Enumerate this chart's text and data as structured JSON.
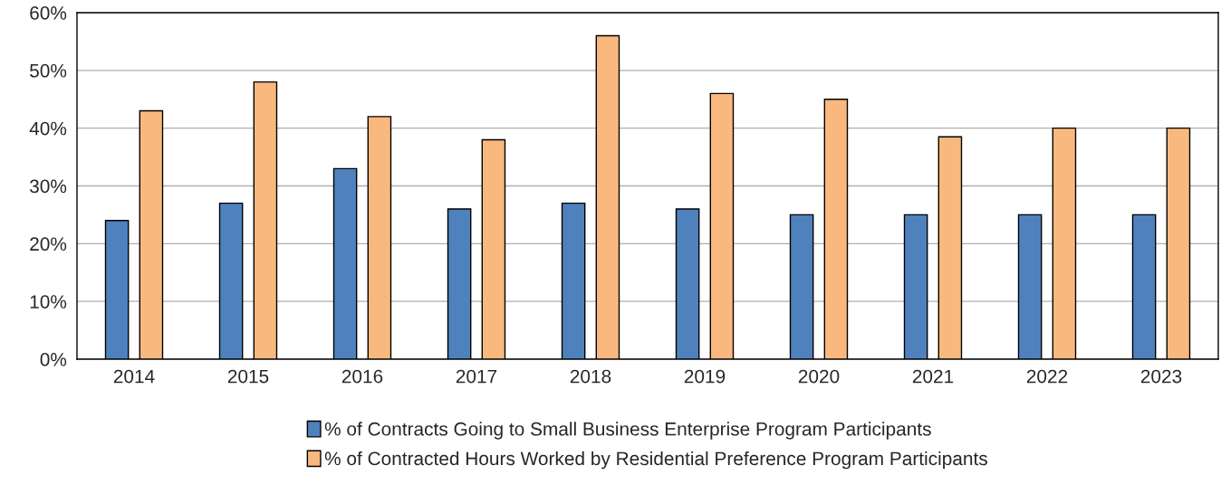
{
  "chart_data": {
    "type": "bar",
    "categories": [
      "2014",
      "2015",
      "2016",
      "2017",
      "2018",
      "2019",
      "2020",
      "2021",
      "2022",
      "2023"
    ],
    "series": [
      {
        "name": "% of Contracts Going to Small Business Enterprise Program Participants",
        "color": "#4f81bd",
        "values": [
          24,
          27,
          33,
          26,
          27,
          26,
          25,
          25,
          25,
          25
        ]
      },
      {
        "name": "% of Contracted Hours Worked by Residential Preference Program Participants",
        "color": "#f9b97e",
        "values": [
          43,
          48,
          42,
          38,
          56,
          46,
          45,
          38.5,
          40,
          40
        ]
      }
    ],
    "ylim": [
      0,
      60
    ],
    "yticks": [
      {
        "value": 0,
        "label": "0%"
      },
      {
        "value": 10,
        "label": "10%"
      },
      {
        "value": 20,
        "label": "20%"
      },
      {
        "value": 30,
        "label": "30%"
      },
      {
        "value": 40,
        "label": "40%"
      },
      {
        "value": 50,
        "label": "50%"
      },
      {
        "value": 60,
        "label": "60%"
      }
    ],
    "grid": "y",
    "legend": "bottom"
  }
}
